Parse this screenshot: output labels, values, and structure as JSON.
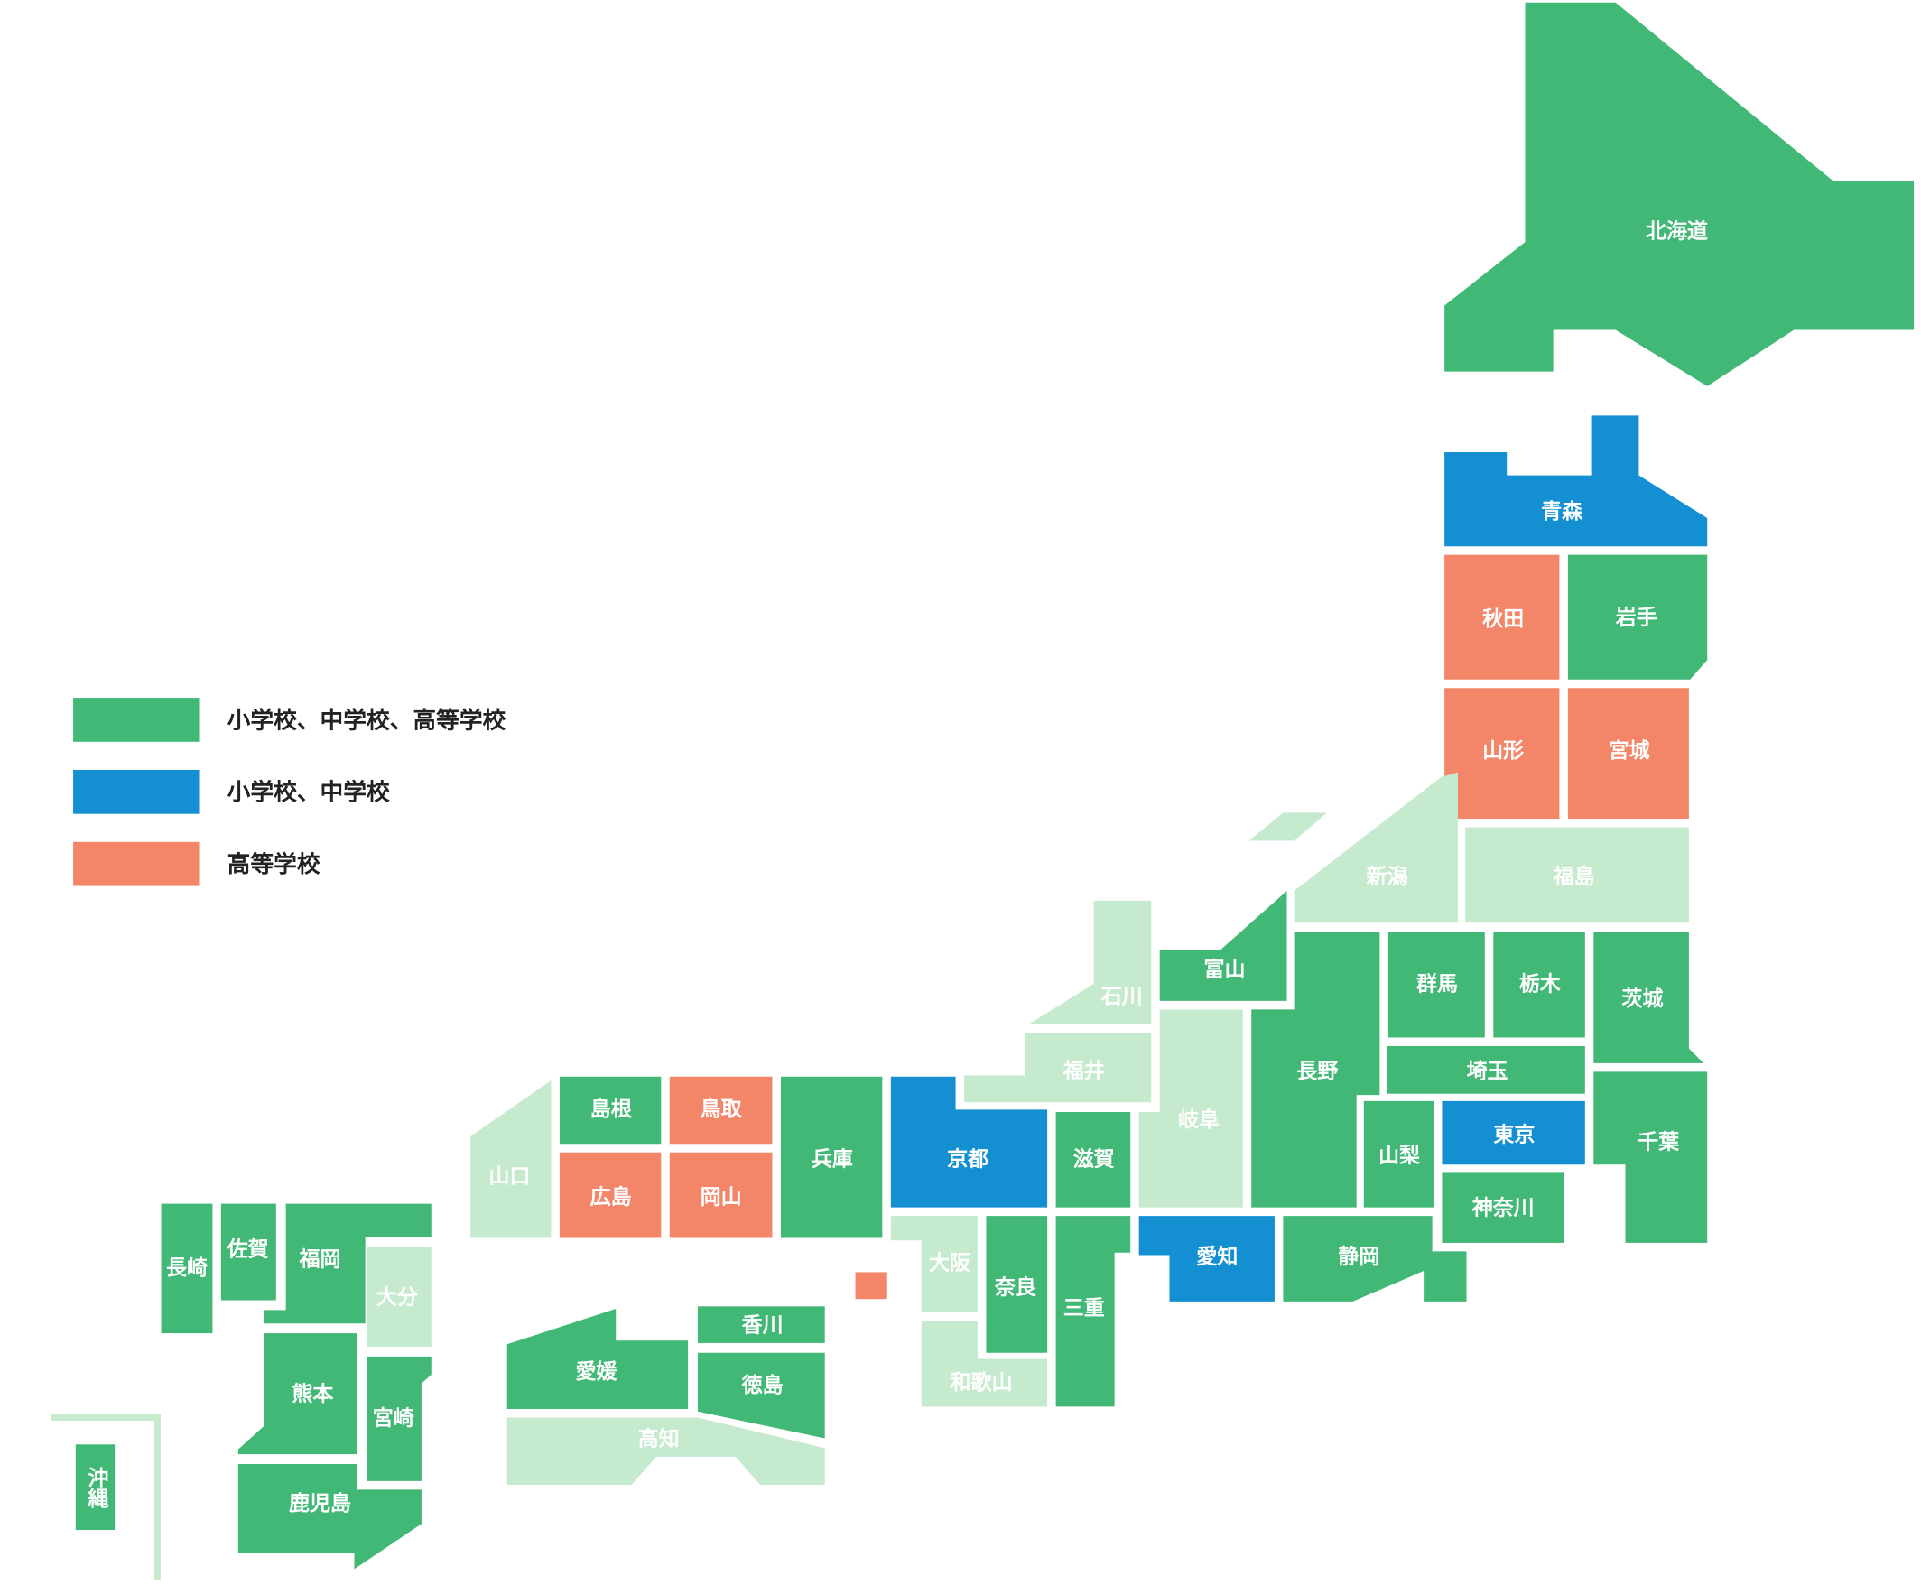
{
  "groups": [
    {
      "label": "小学校、中学校、高等学校",
      "color": "#41b875",
      "prefectures": [
        "北海道",
        "岩手",
        "富山",
        "長野",
        "群馬",
        "栃木",
        "茨城",
        "埼玉",
        "山梨",
        "千葉",
        "神奈川",
        "静岡",
        "滋賀",
        "三重",
        "奈良",
        "兵庫",
        "島根",
        "香川",
        "徳島",
        "愛媛",
        "福岡",
        "佐賀",
        "長崎",
        "熊本",
        "宮崎",
        "鹿児島",
        "沖縄"
      ]
    },
    {
      "label": "小学校、中学校",
      "color": "#1490d2",
      "prefectures": [
        "青森",
        "東京",
        "愛知",
        "京都"
      ]
    },
    {
      "label": "高等学校",
      "color": "#f38669",
      "prefectures": [
        "秋田",
        "山形",
        "宮城",
        "鳥取",
        "広島",
        "岡山"
      ]
    },
    {
      "color": "#c6eacd",
      "prefectures": [
        "新潟",
        "福島",
        "石川",
        "福井",
        "岐阜",
        "大阪",
        "和歌山",
        "山口",
        "大分",
        "高知"
      ]
    }
  ]
}
